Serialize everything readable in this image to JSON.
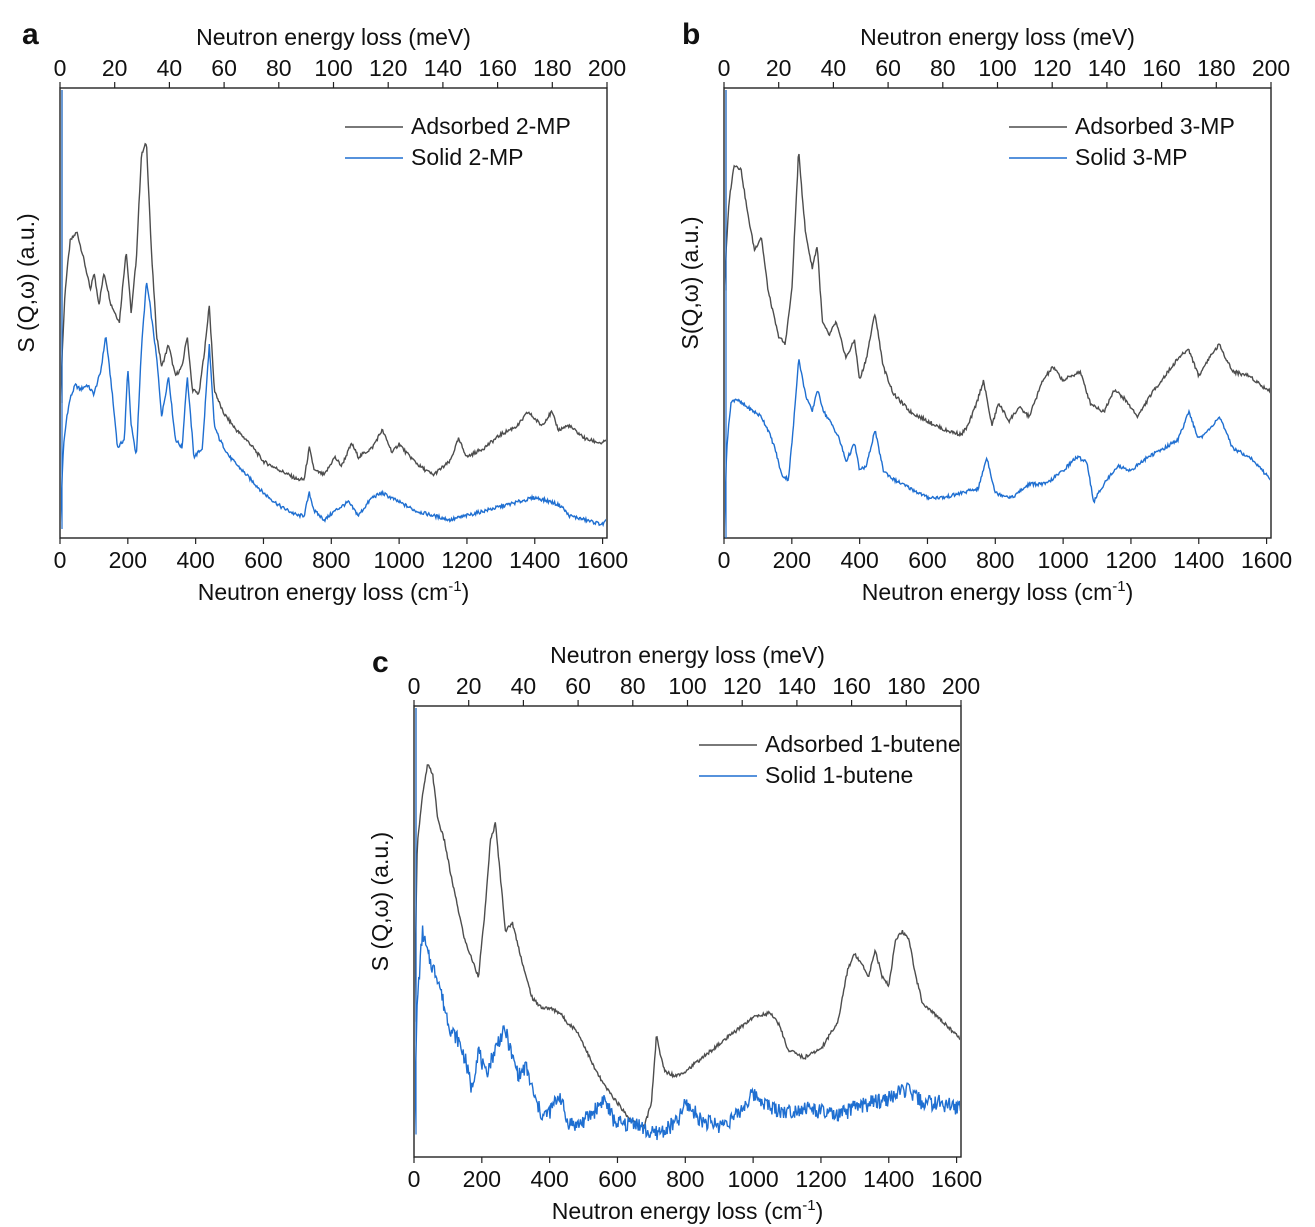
{
  "figure": {
    "panels": [
      "a",
      "b",
      "c"
    ]
  },
  "chart_data": [
    {
      "panel": "a",
      "type": "line",
      "top_axis": {
        "label": "Neutron energy loss (meV)",
        "ticks": [
          "0",
          "20",
          "40",
          "60",
          "80",
          "100",
          "120",
          "140",
          "160",
          "180",
          "200"
        ],
        "range": [
          0,
          200
        ]
      },
      "bottom_axis": {
        "label_main": "Neutron energy loss (cm",
        "label_sup": "-1",
        "label_end": ")",
        "ticks": [
          "0",
          "200",
          "400",
          "600",
          "800",
          "1000",
          "1200",
          "1400",
          "1600"
        ],
        "range": [
          0,
          1613
        ]
      },
      "ylabel": "S (Q,ω) (a.u.)",
      "ylim": [
        0,
        1
      ],
      "legend_position": "top-right",
      "series": [
        {
          "name": "Adsorbed 2-MP",
          "color": "#4d4d4d",
          "x": [
            0,
            15,
            30,
            50,
            70,
            90,
            100,
            115,
            130,
            150,
            175,
            195,
            210,
            225,
            240,
            255,
            270,
            285,
            300,
            320,
            340,
            360,
            375,
            390,
            410,
            430,
            440,
            455,
            480,
            520,
            560,
            600,
            650,
            700,
            720,
            735,
            750,
            780,
            810,
            830,
            860,
            880,
            920,
            950,
            980,
            1000,
            1020,
            1060,
            1100,
            1150,
            1175,
            1200,
            1250,
            1300,
            1350,
            1380,
            1420,
            1450,
            1470,
            1500,
            1550,
            1600,
            1613
          ],
          "y": [
            0.3,
            0.55,
            0.66,
            0.68,
            0.62,
            0.55,
            0.59,
            0.52,
            0.59,
            0.52,
            0.48,
            0.64,
            0.5,
            0.62,
            0.85,
            0.88,
            0.63,
            0.45,
            0.38,
            0.43,
            0.36,
            0.38,
            0.45,
            0.33,
            0.32,
            0.44,
            0.52,
            0.33,
            0.28,
            0.24,
            0.21,
            0.17,
            0.15,
            0.13,
            0.13,
            0.2,
            0.15,
            0.14,
            0.18,
            0.16,
            0.21,
            0.18,
            0.2,
            0.24,
            0.19,
            0.21,
            0.19,
            0.16,
            0.14,
            0.17,
            0.22,
            0.18,
            0.2,
            0.23,
            0.25,
            0.28,
            0.25,
            0.28,
            0.24,
            0.25,
            0.22,
            0.21,
            0.22
          ]
        },
        {
          "name": "Solid 2-MP",
          "color": "#1f6fd1",
          "x": [
            0,
            10,
            20,
            30,
            45,
            60,
            80,
            100,
            120,
            135,
            150,
            170,
            190,
            200,
            210,
            225,
            240,
            255,
            265,
            285,
            300,
            320,
            340,
            360,
            375,
            395,
            420,
            440,
            455,
            470,
            500,
            550,
            600,
            650,
            700,
            720,
            735,
            750,
            780,
            810,
            850,
            880,
            920,
            950,
            1000,
            1050,
            1100,
            1150,
            1200,
            1250,
            1300,
            1350,
            1400,
            1450,
            1480,
            1500,
            1550,
            1600,
            1613
          ],
          "y": [
            0.02,
            0.2,
            0.27,
            0.31,
            0.34,
            0.33,
            0.34,
            0.32,
            0.37,
            0.45,
            0.35,
            0.2,
            0.22,
            0.38,
            0.25,
            0.18,
            0.42,
            0.57,
            0.52,
            0.4,
            0.27,
            0.36,
            0.22,
            0.2,
            0.36,
            0.18,
            0.2,
            0.43,
            0.25,
            0.22,
            0.18,
            0.14,
            0.1,
            0.07,
            0.05,
            0.05,
            0.1,
            0.06,
            0.04,
            0.06,
            0.08,
            0.05,
            0.09,
            0.1,
            0.08,
            0.06,
            0.05,
            0.04,
            0.05,
            0.06,
            0.07,
            0.08,
            0.09,
            0.08,
            0.07,
            0.05,
            0.04,
            0.03,
            0.04
          ]
        }
      ]
    },
    {
      "panel": "b",
      "type": "line",
      "top_axis": {
        "label": "Neutron energy loss (meV)",
        "ticks": [
          "0",
          "20",
          "40",
          "60",
          "80",
          "100",
          "120",
          "140",
          "160",
          "180",
          "200"
        ],
        "range": [
          0,
          200
        ]
      },
      "bottom_axis": {
        "label_main": "Neutron energy loss (cm",
        "label_sup": "-1",
        "label_end": ")",
        "ticks": [
          "0",
          "200",
          "400",
          "600",
          "800",
          "1000",
          "1200",
          "1400",
          "1600"
        ],
        "range": [
          0,
          1613
        ]
      },
      "ylabel": "S(Q,ω) (a.u.)",
      "ylim": [
        0,
        1
      ],
      "legend_position": "top-right",
      "series": [
        {
          "name": "Adsorbed 3-MP",
          "color": "#4d4d4d",
          "x": [
            0,
            15,
            30,
            50,
            70,
            90,
            110,
            130,
            160,
            180,
            200,
            220,
            240,
            260,
            275,
            290,
            310,
            330,
            360,
            385,
            400,
            420,
            445,
            470,
            500,
            550,
            600,
            650,
            700,
            720,
            745,
            765,
            790,
            810,
            840,
            870,
            900,
            940,
            970,
            1000,
            1050,
            1080,
            1120,
            1150,
            1180,
            1220,
            1260,
            1300,
            1340,
            1370,
            1400,
            1430,
            1460,
            1500,
            1550,
            1600,
            1613
          ],
          "y": [
            0.55,
            0.75,
            0.83,
            0.82,
            0.72,
            0.64,
            0.67,
            0.55,
            0.45,
            0.43,
            0.55,
            0.86,
            0.68,
            0.6,
            0.65,
            0.48,
            0.45,
            0.48,
            0.4,
            0.44,
            0.35,
            0.4,
            0.5,
            0.38,
            0.32,
            0.28,
            0.26,
            0.24,
            0.23,
            0.25,
            0.3,
            0.35,
            0.25,
            0.3,
            0.26,
            0.29,
            0.27,
            0.35,
            0.38,
            0.35,
            0.37,
            0.3,
            0.28,
            0.33,
            0.31,
            0.27,
            0.32,
            0.36,
            0.4,
            0.42,
            0.36,
            0.4,
            0.43,
            0.37,
            0.36,
            0.33,
            0.33
          ]
        },
        {
          "name": "Solid 3-MP",
          "color": "#1f6fd1",
          "x": [
            0,
            8,
            20,
            35,
            50,
            70,
            90,
            110,
            130,
            150,
            170,
            190,
            205,
            220,
            240,
            260,
            275,
            295,
            320,
            340,
            360,
            385,
            400,
            420,
            445,
            470,
            500,
            550,
            600,
            650,
            700,
            750,
            775,
            800,
            850,
            900,
            950,
            1000,
            1040,
            1070,
            1090,
            1120,
            1160,
            1200,
            1250,
            1300,
            1340,
            1370,
            1400,
            1430,
            1460,
            1500,
            1550,
            1600,
            1613
          ],
          "y": [
            0.0,
            0.2,
            0.3,
            0.31,
            0.3,
            0.29,
            0.28,
            0.27,
            0.24,
            0.2,
            0.14,
            0.13,
            0.25,
            0.4,
            0.32,
            0.28,
            0.33,
            0.28,
            0.25,
            0.22,
            0.17,
            0.21,
            0.15,
            0.16,
            0.24,
            0.15,
            0.13,
            0.11,
            0.09,
            0.09,
            0.1,
            0.11,
            0.18,
            0.1,
            0.09,
            0.12,
            0.12,
            0.15,
            0.18,
            0.17,
            0.08,
            0.12,
            0.16,
            0.15,
            0.18,
            0.2,
            0.22,
            0.28,
            0.22,
            0.24,
            0.27,
            0.2,
            0.18,
            0.14,
            0.13
          ]
        }
      ]
    },
    {
      "panel": "c",
      "type": "line",
      "top_axis": {
        "label": "Neutron energy loss (meV)",
        "ticks": [
          "0",
          "20",
          "40",
          "60",
          "80",
          "100",
          "120",
          "140",
          "160",
          "180",
          "200"
        ],
        "range": [
          0,
          200
        ]
      },
      "bottom_axis": {
        "label_main": "Neutron energy loss (cm",
        "label_sup": "-1",
        "label_end": ")",
        "ticks": [
          "0",
          "200",
          "400",
          "600",
          "800",
          "1000",
          "1200",
          "1400",
          "1600"
        ],
        "range": [
          0,
          1613
        ]
      },
      "ylabel": "S (Q,ω) (a.u.)",
      "ylim": [
        0,
        1
      ],
      "legend_position": "top-right",
      "series": [
        {
          "name": "Adsorbed 1-butene",
          "color": "#4d4d4d",
          "x": [
            0,
            10,
            25,
            40,
            55,
            70,
            90,
            110,
            130,
            150,
            170,
            190,
            210,
            225,
            240,
            255,
            270,
            290,
            310,
            330,
            350,
            380,
            400,
            430,
            450,
            480,
            500,
            530,
            560,
            600,
            630,
            660,
            680,
            700,
            715,
            725,
            740,
            770,
            800,
            850,
            900,
            950,
            1000,
            1050,
            1080,
            1100,
            1150,
            1200,
            1250,
            1280,
            1300,
            1320,
            1340,
            1360,
            1380,
            1400,
            1420,
            1440,
            1460,
            1480,
            1500,
            1530,
            1560,
            1600,
            1613
          ],
          "y": [
            0.3,
            0.7,
            0.8,
            0.87,
            0.85,
            0.75,
            0.7,
            0.62,
            0.55,
            0.48,
            0.44,
            0.4,
            0.55,
            0.7,
            0.74,
            0.62,
            0.5,
            0.52,
            0.46,
            0.4,
            0.35,
            0.33,
            0.33,
            0.32,
            0.3,
            0.28,
            0.25,
            0.2,
            0.16,
            0.12,
            0.09,
            0.07,
            0.07,
            0.12,
            0.27,
            0.23,
            0.19,
            0.18,
            0.19,
            0.22,
            0.25,
            0.28,
            0.31,
            0.32,
            0.29,
            0.24,
            0.22,
            0.24,
            0.3,
            0.42,
            0.45,
            0.43,
            0.4,
            0.46,
            0.4,
            0.38,
            0.48,
            0.5,
            0.48,
            0.4,
            0.34,
            0.32,
            0.3,
            0.27,
            0.26
          ]
        },
        {
          "name": "Solid 1-butene",
          "color": "#1f6fd1",
          "x": [
            0,
            10,
            25,
            40,
            55,
            70,
            90,
            110,
            130,
            150,
            170,
            190,
            210,
            230,
            250,
            270,
            290,
            310,
            330,
            360,
            380,
            400,
            430,
            450,
            480,
            500,
            530,
            560,
            590,
            620,
            650,
            680,
            700,
            740,
            780,
            800,
            850,
            900,
            950,
            1000,
            1020,
            1050,
            1100,
            1150,
            1200,
            1250,
            1300,
            1350,
            1400,
            1450,
            1500,
            1550,
            1600,
            1613
          ],
          "y": [
            0.05,
            0.35,
            0.5,
            0.45,
            0.42,
            0.4,
            0.33,
            0.28,
            0.26,
            0.22,
            0.15,
            0.24,
            0.18,
            0.22,
            0.26,
            0.28,
            0.22,
            0.18,
            0.2,
            0.12,
            0.09,
            0.1,
            0.14,
            0.08,
            0.07,
            0.08,
            0.1,
            0.13,
            0.08,
            0.07,
            0.08,
            0.06,
            0.05,
            0.06,
            0.08,
            0.12,
            0.08,
            0.07,
            0.09,
            0.14,
            0.13,
            0.11,
            0.1,
            0.11,
            0.1,
            0.09,
            0.11,
            0.12,
            0.13,
            0.15,
            0.12,
            0.12,
            0.11,
            0.11
          ]
        }
      ]
    }
  ]
}
